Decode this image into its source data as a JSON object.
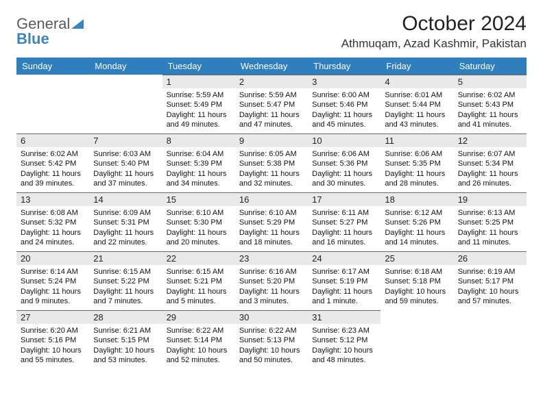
{
  "logo": {
    "text_general": "General",
    "text_blue": "Blue"
  },
  "header": {
    "month_title": "October 2024",
    "location": "Athmuqam, Azad Kashmir, Pakistan"
  },
  "colors": {
    "header_bg": "#2f7fbf",
    "daynum_bg": "#e9e9e9",
    "daynum_border": "#666666",
    "logo_gray": "#5a5a5a",
    "logo_blue": "#3b83c0"
  },
  "weekdays": [
    "Sunday",
    "Monday",
    "Tuesday",
    "Wednesday",
    "Thursday",
    "Friday",
    "Saturday"
  ],
  "weeks": [
    [
      {
        "empty": true
      },
      {
        "empty": true
      },
      {
        "num": "1",
        "sunrise": "Sunrise: 5:59 AM",
        "sunset": "Sunset: 5:49 PM",
        "daylight": "Daylight: 11 hours and 49 minutes."
      },
      {
        "num": "2",
        "sunrise": "Sunrise: 5:59 AM",
        "sunset": "Sunset: 5:47 PM",
        "daylight": "Daylight: 11 hours and 47 minutes."
      },
      {
        "num": "3",
        "sunrise": "Sunrise: 6:00 AM",
        "sunset": "Sunset: 5:46 PM",
        "daylight": "Daylight: 11 hours and 45 minutes."
      },
      {
        "num": "4",
        "sunrise": "Sunrise: 6:01 AM",
        "sunset": "Sunset: 5:44 PM",
        "daylight": "Daylight: 11 hours and 43 minutes."
      },
      {
        "num": "5",
        "sunrise": "Sunrise: 6:02 AM",
        "sunset": "Sunset: 5:43 PM",
        "daylight": "Daylight: 11 hours and 41 minutes."
      }
    ],
    [
      {
        "num": "6",
        "sunrise": "Sunrise: 6:02 AM",
        "sunset": "Sunset: 5:42 PM",
        "daylight": "Daylight: 11 hours and 39 minutes."
      },
      {
        "num": "7",
        "sunrise": "Sunrise: 6:03 AM",
        "sunset": "Sunset: 5:40 PM",
        "daylight": "Daylight: 11 hours and 37 minutes."
      },
      {
        "num": "8",
        "sunrise": "Sunrise: 6:04 AM",
        "sunset": "Sunset: 5:39 PM",
        "daylight": "Daylight: 11 hours and 34 minutes."
      },
      {
        "num": "9",
        "sunrise": "Sunrise: 6:05 AM",
        "sunset": "Sunset: 5:38 PM",
        "daylight": "Daylight: 11 hours and 32 minutes."
      },
      {
        "num": "10",
        "sunrise": "Sunrise: 6:06 AM",
        "sunset": "Sunset: 5:36 PM",
        "daylight": "Daylight: 11 hours and 30 minutes."
      },
      {
        "num": "11",
        "sunrise": "Sunrise: 6:06 AM",
        "sunset": "Sunset: 5:35 PM",
        "daylight": "Daylight: 11 hours and 28 minutes."
      },
      {
        "num": "12",
        "sunrise": "Sunrise: 6:07 AM",
        "sunset": "Sunset: 5:34 PM",
        "daylight": "Daylight: 11 hours and 26 minutes."
      }
    ],
    [
      {
        "num": "13",
        "sunrise": "Sunrise: 6:08 AM",
        "sunset": "Sunset: 5:32 PM",
        "daylight": "Daylight: 11 hours and 24 minutes."
      },
      {
        "num": "14",
        "sunrise": "Sunrise: 6:09 AM",
        "sunset": "Sunset: 5:31 PM",
        "daylight": "Daylight: 11 hours and 22 minutes."
      },
      {
        "num": "15",
        "sunrise": "Sunrise: 6:10 AM",
        "sunset": "Sunset: 5:30 PM",
        "daylight": "Daylight: 11 hours and 20 minutes."
      },
      {
        "num": "16",
        "sunrise": "Sunrise: 6:10 AM",
        "sunset": "Sunset: 5:29 PM",
        "daylight": "Daylight: 11 hours and 18 minutes."
      },
      {
        "num": "17",
        "sunrise": "Sunrise: 6:11 AM",
        "sunset": "Sunset: 5:27 PM",
        "daylight": "Daylight: 11 hours and 16 minutes."
      },
      {
        "num": "18",
        "sunrise": "Sunrise: 6:12 AM",
        "sunset": "Sunset: 5:26 PM",
        "daylight": "Daylight: 11 hours and 14 minutes."
      },
      {
        "num": "19",
        "sunrise": "Sunrise: 6:13 AM",
        "sunset": "Sunset: 5:25 PM",
        "daylight": "Daylight: 11 hours and 11 minutes."
      }
    ],
    [
      {
        "num": "20",
        "sunrise": "Sunrise: 6:14 AM",
        "sunset": "Sunset: 5:24 PM",
        "daylight": "Daylight: 11 hours and 9 minutes."
      },
      {
        "num": "21",
        "sunrise": "Sunrise: 6:15 AM",
        "sunset": "Sunset: 5:22 PM",
        "daylight": "Daylight: 11 hours and 7 minutes."
      },
      {
        "num": "22",
        "sunrise": "Sunrise: 6:15 AM",
        "sunset": "Sunset: 5:21 PM",
        "daylight": "Daylight: 11 hours and 5 minutes."
      },
      {
        "num": "23",
        "sunrise": "Sunrise: 6:16 AM",
        "sunset": "Sunset: 5:20 PM",
        "daylight": "Daylight: 11 hours and 3 minutes."
      },
      {
        "num": "24",
        "sunrise": "Sunrise: 6:17 AM",
        "sunset": "Sunset: 5:19 PM",
        "daylight": "Daylight: 11 hours and 1 minute."
      },
      {
        "num": "25",
        "sunrise": "Sunrise: 6:18 AM",
        "sunset": "Sunset: 5:18 PM",
        "daylight": "Daylight: 10 hours and 59 minutes."
      },
      {
        "num": "26",
        "sunrise": "Sunrise: 6:19 AM",
        "sunset": "Sunset: 5:17 PM",
        "daylight": "Daylight: 10 hours and 57 minutes."
      }
    ],
    [
      {
        "num": "27",
        "sunrise": "Sunrise: 6:20 AM",
        "sunset": "Sunset: 5:16 PM",
        "daylight": "Daylight: 10 hours and 55 minutes."
      },
      {
        "num": "28",
        "sunrise": "Sunrise: 6:21 AM",
        "sunset": "Sunset: 5:15 PM",
        "daylight": "Daylight: 10 hours and 53 minutes."
      },
      {
        "num": "29",
        "sunrise": "Sunrise: 6:22 AM",
        "sunset": "Sunset: 5:14 PM",
        "daylight": "Daylight: 10 hours and 52 minutes."
      },
      {
        "num": "30",
        "sunrise": "Sunrise: 6:22 AM",
        "sunset": "Sunset: 5:13 PM",
        "daylight": "Daylight: 10 hours and 50 minutes."
      },
      {
        "num": "31",
        "sunrise": "Sunrise: 6:23 AM",
        "sunset": "Sunset: 5:12 PM",
        "daylight": "Daylight: 10 hours and 48 minutes."
      },
      {
        "empty": true
      },
      {
        "empty": true
      }
    ]
  ]
}
